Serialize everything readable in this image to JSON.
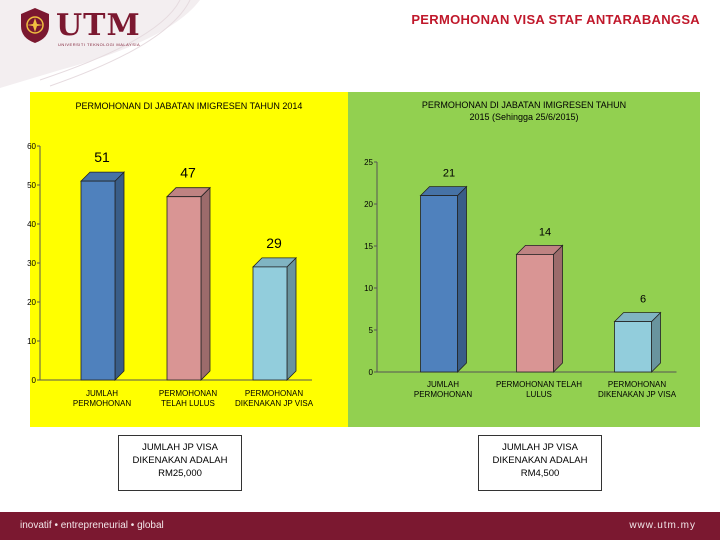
{
  "header": {
    "logo_text": "UTM",
    "logo_subtext": "UNIVERSITI TEKNOLOGI MALAYSIA",
    "slide_title": "PERMOHONAN VISA STAF ANTARABANGSA"
  },
  "colors": {
    "brand": "#7b1830",
    "title_red": "#c0182b",
    "left_panel_bg": "#ffff00",
    "right_panel_bg": "#92d050"
  },
  "chart_data": [
    {
      "type": "bar",
      "title": "PERMOHONAN DI JABATAN IMIGRESEN TAHUN 2014",
      "title_lines": [
        "PERMOHONAN DI JABATAN IMIGRESEN TAHUN 2014"
      ],
      "categories": [
        "JUMLAH PERMOHONAN",
        "PERMOHONAN TELAH LULUS",
        "PERMOHONAN DIKENAKAN JP VISA"
      ],
      "category_lines": [
        [
          "JUMLAH",
          "PERMOHONAN"
        ],
        [
          "PERMOHONAN",
          "TELAH LULUS"
        ],
        [
          "PERMOHONAN",
          "DIKENAKAN JP VISA"
        ]
      ],
      "values": [
        51,
        47,
        29
      ],
      "value_labels": [
        "51",
        "47",
        "29"
      ],
      "bar_colors": [
        "#4f81bd",
        "#d99594",
        "#92cddc"
      ],
      "ylim": [
        0,
        60
      ],
      "yticks": [
        0,
        10,
        20,
        30,
        40,
        50,
        60
      ],
      "ytick_labels": [
        "0",
        "10",
        "20",
        "30",
        "40",
        "50",
        "60"
      ],
      "legend": "none",
      "grid": false,
      "note_lines": [
        "JUMLAH JP VISA",
        "DIKENAKAN ADALAH",
        "RM25,000"
      ]
    },
    {
      "type": "bar",
      "title": "PERMOHONAN DI JABATAN IMIGRESEN TAHUN 2015 (Sehingga 25/6/2015)",
      "title_lines": [
        "PERMOHONAN DI JABATAN IMIGRESEN TAHUN",
        "2015 (Sehingga 25/6/2015)"
      ],
      "categories": [
        "JUMLAH PERMOHONAN",
        "PERMOHONAN TELAH LULUS",
        "PERMOHONAN DIKENAKAN JP VISA"
      ],
      "category_lines": [
        [
          "JUMLAH",
          "PERMOHONAN"
        ],
        [
          "PERMOHONAN TELAH",
          "LULUS"
        ],
        [
          "PERMOHONAN",
          "DIKENAKAN JP VISA"
        ]
      ],
      "values": [
        21,
        14,
        6
      ],
      "value_labels": [
        "21",
        "14",
        "6"
      ],
      "bar_colors": [
        "#4f81bd",
        "#d99594",
        "#92cddc"
      ],
      "ylim": [
        0,
        25
      ],
      "yticks": [
        0,
        5,
        10,
        15,
        20,
        25
      ],
      "ytick_labels": [
        "0",
        "5",
        "10",
        "15",
        "20",
        "25"
      ],
      "legend": "none",
      "grid": false,
      "note_lines": [
        "JUMLAH JP VISA",
        "DIKENAKAN ADALAH",
        "RM4,500"
      ]
    }
  ],
  "footer": {
    "tagline": "inovatif • entrepreneurial • global",
    "website": "www.utm.my"
  }
}
